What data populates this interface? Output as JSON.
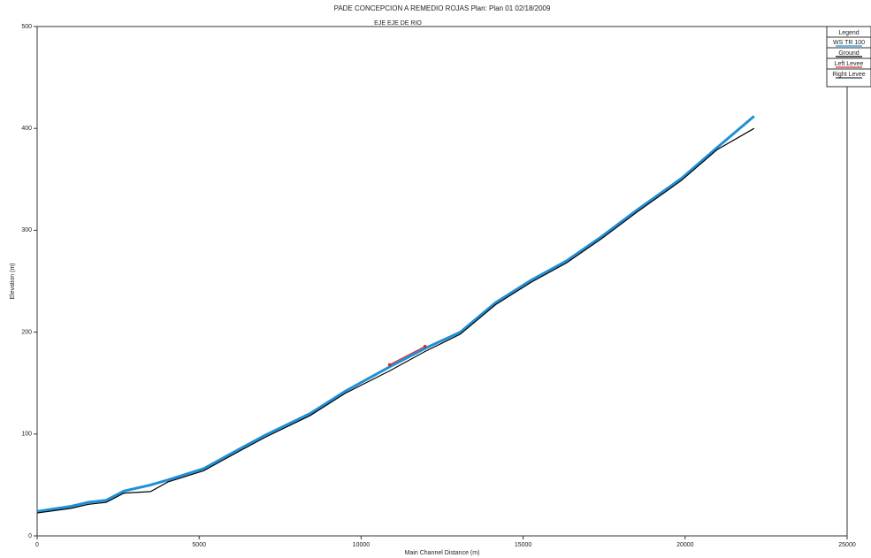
{
  "chart_data": {
    "type": "line",
    "title": "PADE CONCEPCION A REMEDIO ROJAS     Plan: Plan 01    02/18/2009",
    "subtitle": "EJE EJE DE RIO",
    "x_label": "Main Channel Distance (m)",
    "y_label": "Elevation (m)",
    "legend_title": "Legend",
    "x": [
      0,
      1040,
      1585,
      2130,
      2680,
      3500,
      4040,
      5140,
      6230,
      7050,
      8420,
      9510,
      10880,
      11970,
      13060,
      14150,
      15250,
      16340,
      17430,
      18520,
      19890,
      20980,
      22130
    ],
    "series": [
      {
        "name": "WS  TR 100",
        "color": "#1f8fd6",
        "values": [
          24,
          29,
          33,
          35,
          44,
          50,
          55,
          66,
          85,
          99,
          120,
          142,
          166,
          184,
          200,
          229,
          251,
          270,
          294,
          320,
          351,
          381,
          412
        ]
      },
      {
        "name": "Ground",
        "color": "#000000",
        "values": [
          22.5,
          27,
          31,
          33,
          42,
          43.5,
          53,
          64,
          83,
          97,
          118,
          140,
          162,
          181,
          198,
          227,
          249,
          268,
          292,
          318,
          349,
          379,
          400
        ]
      },
      {
        "name": "Left Levee",
        "color": "#d0302a",
        "values": [
          null,
          null,
          null,
          null,
          null,
          null,
          null,
          null,
          null,
          null,
          null,
          null,
          168,
          186,
          null,
          null,
          null,
          null,
          null,
          null,
          null,
          null,
          null
        ]
      },
      {
        "name": "Right Levee",
        "color": "#333333",
        "values": [
          null,
          null,
          null,
          null,
          null,
          null,
          null,
          null,
          null,
          null,
          null,
          null,
          null,
          null,
          null,
          null,
          null,
          null,
          null,
          null,
          null,
          null,
          null
        ]
      }
    ],
    "xlim": [
      0,
      25000
    ],
    "xticks": [
      0,
      5000,
      10000,
      15000,
      20000,
      25000
    ],
    "ylim": [
      0,
      500
    ],
    "yticks": [
      0,
      100,
      200,
      300,
      400,
      500
    ]
  }
}
